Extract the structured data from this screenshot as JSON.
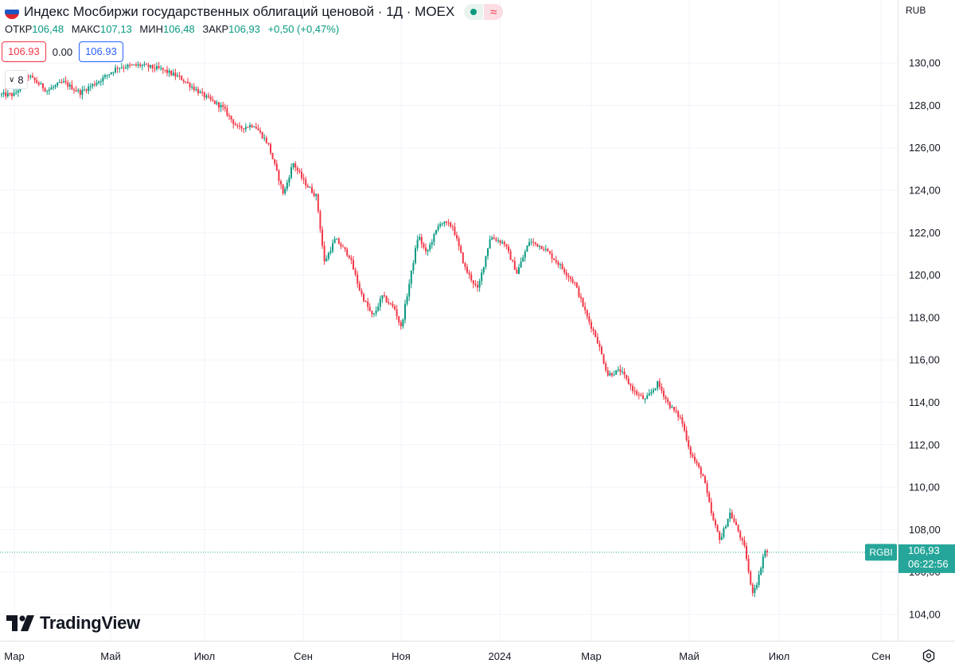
{
  "header": {
    "title": "Индекс Мосбиржи государственных облигаций ценовой · 1Д · MOEX",
    "ohlc": {
      "open_label": "ОТКР",
      "open": "106,48",
      "high_label": "МАКС",
      "high": "107,13",
      "low_label": "МИН",
      "low": "106,48",
      "close_label": "ЗАКР",
      "close": "106,93",
      "change": "+0,50 (+0,47%)"
    },
    "sell_price": "106.93",
    "spread": "0.00",
    "buy_price": "106.93",
    "indicators_count": "8",
    "currency": "RUB"
  },
  "price_label": {
    "symbol": "RGBI",
    "price": "106,93",
    "countdown": "06:22:56"
  },
  "colors": {
    "up": "#089981",
    "down": "#f23645",
    "grid": "#f0f3fa",
    "axis_text": "#131722",
    "badge_bg": "#26a69a"
  },
  "logo": {
    "text": "TradingView"
  },
  "chart_data": {
    "type": "candlestick",
    "title": "Индекс Мосбиржи государственных облигаций ценовой",
    "timeframe": "1Д",
    "ylim": [
      103,
      131.5
    ],
    "y_ticks": [
      "104,00",
      "106,00",
      "108,00",
      "110,00",
      "112,00",
      "114,00",
      "116,00",
      "118,00",
      "120,00",
      "122,00",
      "124,00",
      "126,00",
      "128,00",
      "130,00"
    ],
    "x_ticks": [
      "Мар",
      "Май",
      "Июл",
      "Сен",
      "Ноя",
      "2024",
      "Мар",
      "Май",
      "Июл",
      "Сен"
    ],
    "current_price": 106.93,
    "path": [
      {
        "d": "2023-03-01",
        "v": 128.5
      },
      {
        "d": "2023-03-10",
        "v": 129.4
      },
      {
        "d": "2023-03-22",
        "v": 128.7
      },
      {
        "d": "2023-04-01",
        "v": 129.1
      },
      {
        "d": "2023-04-12",
        "v": 128.6
      },
      {
        "d": "2023-04-25",
        "v": 129.2
      },
      {
        "d": "2023-05-06",
        "v": 129.8
      },
      {
        "d": "2023-05-20",
        "v": 129.9
      },
      {
        "d": "2023-06-03",
        "v": 129.7
      },
      {
        "d": "2023-06-15",
        "v": 129.3
      },
      {
        "d": "2023-07-01",
        "v": 128.4
      },
      {
        "d": "2023-07-12",
        "v": 127.9
      },
      {
        "d": "2023-07-22",
        "v": 126.9
      },
      {
        "d": "2023-08-01",
        "v": 127.1
      },
      {
        "d": "2023-08-10",
        "v": 126.2
      },
      {
        "d": "2023-08-20",
        "v": 123.8
      },
      {
        "d": "2023-08-26",
        "v": 125.3
      },
      {
        "d": "2023-09-02",
        "v": 124.4
      },
      {
        "d": "2023-09-10",
        "v": 123.7
      },
      {
        "d": "2023-09-15",
        "v": 120.6
      },
      {
        "d": "2023-09-22",
        "v": 121.7
      },
      {
        "d": "2023-10-01",
        "v": 120.9
      },
      {
        "d": "2023-10-08",
        "v": 119.2
      },
      {
        "d": "2023-10-16",
        "v": 118.0
      },
      {
        "d": "2023-10-22",
        "v": 119.0
      },
      {
        "d": "2023-10-30",
        "v": 118.4
      },
      {
        "d": "2023-11-03",
        "v": 117.5
      },
      {
        "d": "2023-11-08",
        "v": 119.5
      },
      {
        "d": "2023-11-14",
        "v": 121.9
      },
      {
        "d": "2023-11-19",
        "v": 121.0
      },
      {
        "d": "2023-11-28",
        "v": 122.5
      },
      {
        "d": "2023-12-06",
        "v": 122.3
      },
      {
        "d": "2023-12-14",
        "v": 120.3
      },
      {
        "d": "2023-12-22",
        "v": 119.3
      },
      {
        "d": "2023-12-30",
        "v": 121.8
      },
      {
        "d": "2024-01-08",
        "v": 121.5
      },
      {
        "d": "2024-01-16",
        "v": 120.1
      },
      {
        "d": "2024-01-24",
        "v": 121.6
      },
      {
        "d": "2024-02-02",
        "v": 121.3
      },
      {
        "d": "2024-02-12",
        "v": 120.5
      },
      {
        "d": "2024-02-22",
        "v": 119.6
      },
      {
        "d": "2024-03-01",
        "v": 118.0
      },
      {
        "d": "2024-03-07",
        "v": 117.0
      },
      {
        "d": "2024-03-14",
        "v": 115.3
      },
      {
        "d": "2024-03-22",
        "v": 115.5
      },
      {
        "d": "2024-03-31",
        "v": 114.5
      },
      {
        "d": "2024-04-07",
        "v": 114.1
      },
      {
        "d": "2024-04-15",
        "v": 114.9
      },
      {
        "d": "2024-04-22",
        "v": 113.9
      },
      {
        "d": "2024-04-30",
        "v": 113.2
      },
      {
        "d": "2024-05-06",
        "v": 111.6
      },
      {
        "d": "2024-05-14",
        "v": 110.5
      },
      {
        "d": "2024-05-20",
        "v": 108.5
      },
      {
        "d": "2024-05-25",
        "v": 107.5
      },
      {
        "d": "2024-05-31",
        "v": 108.8
      },
      {
        "d": "2024-06-05",
        "v": 108.0
      },
      {
        "d": "2024-06-10",
        "v": 107.0
      },
      {
        "d": "2024-06-14",
        "v": 105.0
      },
      {
        "d": "2024-06-18",
        "v": 105.6
      },
      {
        "d": "2024-06-22",
        "v": 107.0
      },
      {
        "d": "2024-06-25",
        "v": 106.93
      }
    ]
  }
}
